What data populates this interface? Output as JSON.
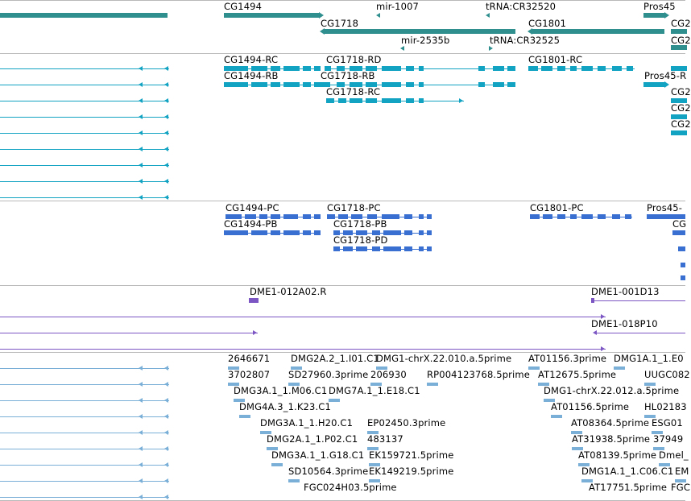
{
  "colors": {
    "gene": "#2f8f8f",
    "transcript": "#12a3c2",
    "protein": "#3a6fd2",
    "clone": "#7c57c4",
    "est": "#7ab0d8",
    "separator": "#b9b9b9"
  },
  "tracks": {
    "genes": [
      "CG1494",
      "mir-1007",
      "tRNA:CR32520",
      "Pros45",
      "CG1718",
      "CG1801",
      "CG2",
      "mir-2535b",
      "tRNA:CR32525",
      "CG2"
    ],
    "transcripts": [
      "CG1494-RC",
      "CG1718-RD",
      "CG1801-RC",
      "CG1494-RB",
      "CG1718-RB",
      "Pros45-R",
      "CG1718-RC",
      "CG2",
      "CG2",
      "CG2"
    ],
    "proteins": [
      "CG1494-PC",
      "CG1718-PC",
      "CG1801-PC",
      "Pros45-",
      "CG1494-PB",
      "CG1718-PB",
      "CG",
      "CG1718-PD"
    ],
    "clones": [
      "DME1-012A02.R",
      "DME1-001D13",
      "DME1-018P10"
    ],
    "ests": [
      "2646671",
      "DMG2A.2_1.I01.C1",
      "DMG1-chrX.22.010.a.5prime",
      "AT01156.3prime",
      "DMG1A.1_1.E0",
      "3702807",
      "SD27960.3prime",
      "206930",
      "RP004123768.5prime",
      "AT12675.5prime",
      "UUGC082",
      "DMG3A.1_1.M06.C1",
      "DMG7A.1_1.E18.C1",
      "DMG1-chrX.22.012.a.5prime",
      "DMG4A.3_1.K23.C1",
      "AT01156.5prime",
      "HL02183",
      "DMG3A.1_1.H20.C1",
      "EP02450.3prime",
      "AT08364.5prime",
      "ESG01",
      "DMG2A.1_1.P02.C1",
      "483137",
      "AT31938.5prime",
      "37949",
      "DMG3A.1_1.G18.C1",
      "EK159721.5prime",
      "AT08139.5prime",
      "Dmel_",
      "SD10564.3prime",
      "EK149219.5prime",
      "DMG1A.1_1.C06.C1",
      "EM",
      "FGC024H03.5prime",
      "AT17751.5prime",
      "FGC"
    ]
  }
}
